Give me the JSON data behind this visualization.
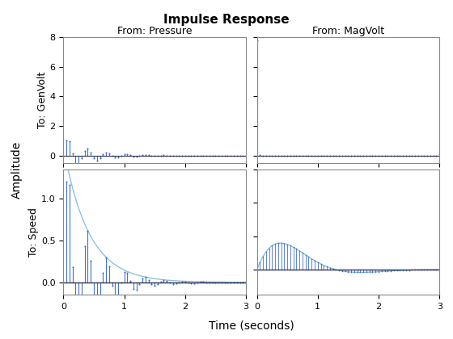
{
  "title": "Impulse Response",
  "xlabel": "Time (seconds)",
  "ylabel": "Amplitude",
  "col_titles": [
    "From: Pressure",
    "From: MagVolt"
  ],
  "row_ylabels": [
    "To: GenVolt",
    "To: Speed"
  ],
  "xlim": [
    0,
    3
  ],
  "t_max": 3.0,
  "dt": 0.05,
  "line_color": "#4472c4",
  "envelope_color": "#7fbfdf",
  "bg_color": "#ffffff",
  "ax_face_color": "#ffffff",
  "suptitle_fontsize": 11,
  "label_fontsize": 9,
  "tick_fontsize": 8
}
